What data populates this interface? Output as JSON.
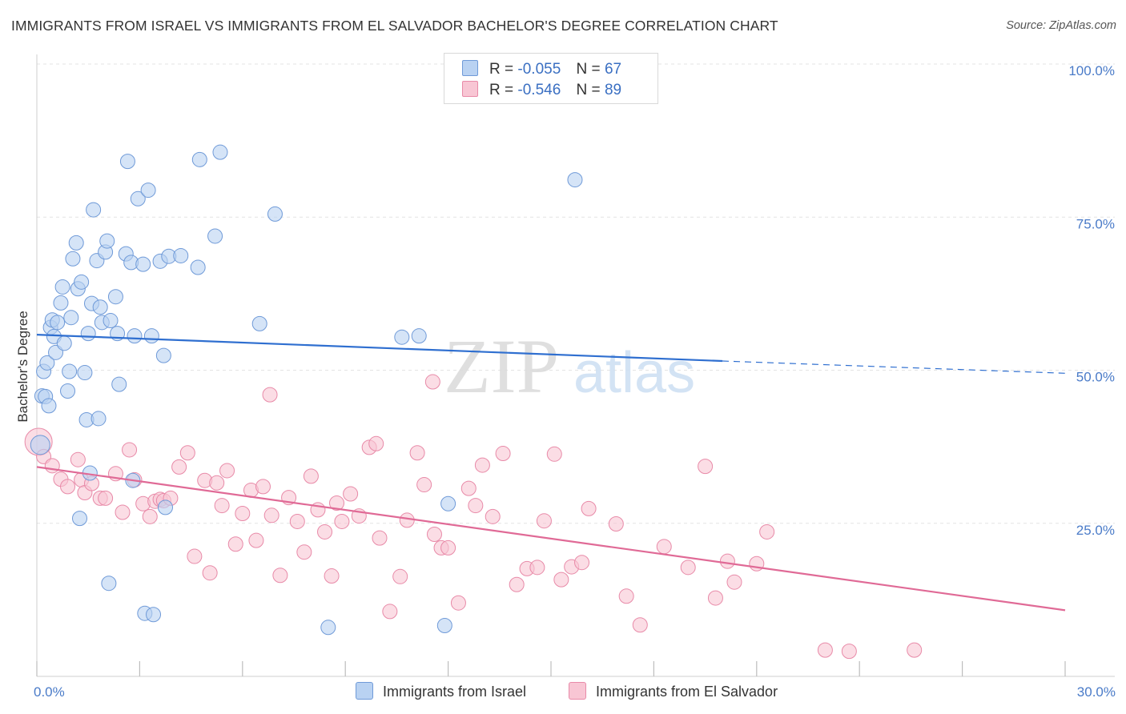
{
  "header": {
    "title": "IMMIGRANTS FROM ISRAEL VS IMMIGRANTS FROM EL SALVADOR BACHELOR'S DEGREE CORRELATION CHART",
    "source": "Source: ZipAtlas.com"
  },
  "watermark": {
    "zip": "ZIP",
    "atlas": "atlas"
  },
  "legend": {
    "israel": {
      "r_label": "R =",
      "r_value": "-0.055",
      "n_label": "N =",
      "n_value": "67"
    },
    "elsalvador": {
      "r_label": "R =",
      "r_value": "-0.546",
      "n_label": "N =",
      "n_value": "89"
    }
  },
  "bottom_legend": {
    "israel": "Immigrants from Israel",
    "elsalvador": "Immigrants from El Salvador"
  },
  "colors": {
    "israel_fill": "#b9d2f2",
    "israel_stroke": "#6f9ad8",
    "israel_line": "#2f6fd0",
    "elsalvador_fill": "#f8c6d4",
    "elsalvador_stroke": "#e88aa8",
    "elsalvador_line": "#e06a96",
    "tick_label": "#4a7bc8"
  },
  "chart_data": {
    "type": "scatter",
    "xlabel": "",
    "ylabel": "Bachelor's Degree",
    "xlim": [
      0,
      30
    ],
    "ylim": [
      0,
      100
    ],
    "x_tick_labels": [
      "0.0%",
      "30.0%"
    ],
    "y_tick_labels": [
      "25.0%",
      "50.0%",
      "75.0%",
      "100.0%"
    ],
    "y_tick_values": [
      25,
      50,
      75,
      100
    ],
    "grid": "horizontal dashed",
    "series": [
      {
        "name": "Immigrants from Israel",
        "color": "#b9d2f2",
        "trend": {
          "x0": 0,
          "y0": 55.8,
          "x1": 20,
          "y1": 51.5,
          "extend_to_x": 30,
          "extend_to_y": 49.5
        },
        "points": [
          [
            0.1,
            37.8
          ],
          [
            0.15,
            45.8
          ],
          [
            0.2,
            49.8
          ],
          [
            0.25,
            45.7
          ],
          [
            0.3,
            51.2
          ],
          [
            0.35,
            44.2
          ],
          [
            0.4,
            57.0
          ],
          [
            0.45,
            58.2
          ],
          [
            0.5,
            55.5
          ],
          [
            0.55,
            52.9
          ],
          [
            0.6,
            57.8
          ],
          [
            0.7,
            61.0
          ],
          [
            0.75,
            63.6
          ],
          [
            0.8,
            54.4
          ],
          [
            0.9,
            46.6
          ],
          [
            0.95,
            49.8
          ],
          [
            1.0,
            58.6
          ],
          [
            1.05,
            68.2
          ],
          [
            1.15,
            70.8
          ],
          [
            1.2,
            63.3
          ],
          [
            1.25,
            25.8
          ],
          [
            1.3,
            64.4
          ],
          [
            1.4,
            49.6
          ],
          [
            1.45,
            41.9
          ],
          [
            1.5,
            56.0
          ],
          [
            1.55,
            33.2
          ],
          [
            1.6,
            60.9
          ],
          [
            1.65,
            76.2
          ],
          [
            1.75,
            67.9
          ],
          [
            1.8,
            42.1
          ],
          [
            1.85,
            60.3
          ],
          [
            1.9,
            57.8
          ],
          [
            2.0,
            69.3
          ],
          [
            2.05,
            71.1
          ],
          [
            2.1,
            15.2
          ],
          [
            2.15,
            58.1
          ],
          [
            2.3,
            62.0
          ],
          [
            2.35,
            56.0
          ],
          [
            2.4,
            47.7
          ],
          [
            2.6,
            69.0
          ],
          [
            2.65,
            84.1
          ],
          [
            2.75,
            67.6
          ],
          [
            2.8,
            32.0
          ],
          [
            2.85,
            55.6
          ],
          [
            2.95,
            78.0
          ],
          [
            3.1,
            67.3
          ],
          [
            3.15,
            10.3
          ],
          [
            3.25,
            79.4
          ],
          [
            3.35,
            55.6
          ],
          [
            3.4,
            10.1
          ],
          [
            3.6,
            67.8
          ],
          [
            3.7,
            52.4
          ],
          [
            3.75,
            27.6
          ],
          [
            3.85,
            68.6
          ],
          [
            4.2,
            68.7
          ],
          [
            4.7,
            66.8
          ],
          [
            4.75,
            84.4
          ],
          [
            5.2,
            71.9
          ],
          [
            5.35,
            85.6
          ],
          [
            6.5,
            57.6
          ],
          [
            6.95,
            75.5
          ],
          [
            8.5,
            8.0
          ],
          [
            10.65,
            55.4
          ],
          [
            11.15,
            55.6
          ],
          [
            11.9,
            8.3
          ],
          [
            12.0,
            28.2
          ],
          [
            15.7,
            81.1
          ]
        ]
      },
      {
        "name": "Immigrants from El Salvador",
        "color": "#f8c6d4",
        "trend": {
          "x0": 0,
          "y0": 34.2,
          "x1": 30,
          "y1": 10.8
        },
        "points": [
          [
            0.05,
            38.3
          ],
          [
            0.2,
            35.9
          ],
          [
            0.45,
            34.4
          ],
          [
            0.7,
            32.2
          ],
          [
            0.9,
            31.0
          ],
          [
            1.2,
            35.4
          ],
          [
            1.3,
            32.1
          ],
          [
            1.4,
            30.0
          ],
          [
            1.6,
            31.5
          ],
          [
            1.85,
            29.1
          ],
          [
            2.0,
            29.1
          ],
          [
            2.3,
            33.1
          ],
          [
            2.5,
            26.8
          ],
          [
            2.7,
            37.0
          ],
          [
            2.85,
            32.1
          ],
          [
            3.1,
            28.2
          ],
          [
            3.3,
            26.1
          ],
          [
            3.45,
            28.6
          ],
          [
            3.6,
            28.9
          ],
          [
            3.7,
            28.7
          ],
          [
            3.9,
            29.1
          ],
          [
            4.15,
            34.2
          ],
          [
            4.4,
            36.5
          ],
          [
            4.6,
            19.6
          ],
          [
            4.9,
            32.0
          ],
          [
            5.05,
            16.9
          ],
          [
            5.25,
            31.6
          ],
          [
            5.4,
            27.9
          ],
          [
            5.55,
            33.6
          ],
          [
            5.8,
            21.6
          ],
          [
            6.0,
            26.6
          ],
          [
            6.25,
            30.4
          ],
          [
            6.4,
            22.2
          ],
          [
            6.6,
            31.0
          ],
          [
            6.8,
            46.0
          ],
          [
            6.85,
            26.3
          ],
          [
            7.1,
            16.5
          ],
          [
            7.35,
            29.2
          ],
          [
            7.6,
            25.3
          ],
          [
            7.8,
            20.3
          ],
          [
            8.0,
            32.7
          ],
          [
            8.2,
            27.2
          ],
          [
            8.4,
            23.6
          ],
          [
            8.6,
            16.4
          ],
          [
            8.75,
            28.3
          ],
          [
            8.9,
            25.3
          ],
          [
            9.15,
            29.8
          ],
          [
            9.4,
            26.2
          ],
          [
            9.7,
            37.4
          ],
          [
            9.9,
            38.0
          ],
          [
            10.0,
            22.6
          ],
          [
            10.3,
            10.6
          ],
          [
            10.6,
            16.3
          ],
          [
            10.8,
            25.5
          ],
          [
            11.1,
            36.5
          ],
          [
            11.3,
            31.3
          ],
          [
            11.55,
            48.1
          ],
          [
            11.6,
            23.2
          ],
          [
            11.8,
            21.0
          ],
          [
            12.0,
            21.0
          ],
          [
            12.3,
            12.0
          ],
          [
            12.6,
            30.7
          ],
          [
            12.8,
            27.9
          ],
          [
            13.0,
            34.5
          ],
          [
            13.3,
            26.1
          ],
          [
            13.6,
            36.4
          ],
          [
            14.0,
            15.0
          ],
          [
            14.3,
            17.6
          ],
          [
            14.6,
            17.8
          ],
          [
            14.8,
            25.4
          ],
          [
            15.1,
            36.3
          ],
          [
            15.3,
            15.8
          ],
          [
            15.6,
            17.9
          ],
          [
            15.9,
            18.6
          ],
          [
            16.1,
            27.4
          ],
          [
            16.9,
            24.9
          ],
          [
            17.2,
            13.1
          ],
          [
            17.6,
            8.4
          ],
          [
            18.3,
            21.2
          ],
          [
            19.0,
            17.8
          ],
          [
            19.5,
            34.3
          ],
          [
            19.8,
            12.8
          ],
          [
            20.15,
            18.8
          ],
          [
            20.35,
            15.4
          ],
          [
            21.0,
            18.4
          ],
          [
            21.3,
            23.6
          ],
          [
            23.0,
            4.3
          ],
          [
            23.7,
            4.1
          ],
          [
            25.6,
            4.3
          ]
        ]
      }
    ]
  }
}
